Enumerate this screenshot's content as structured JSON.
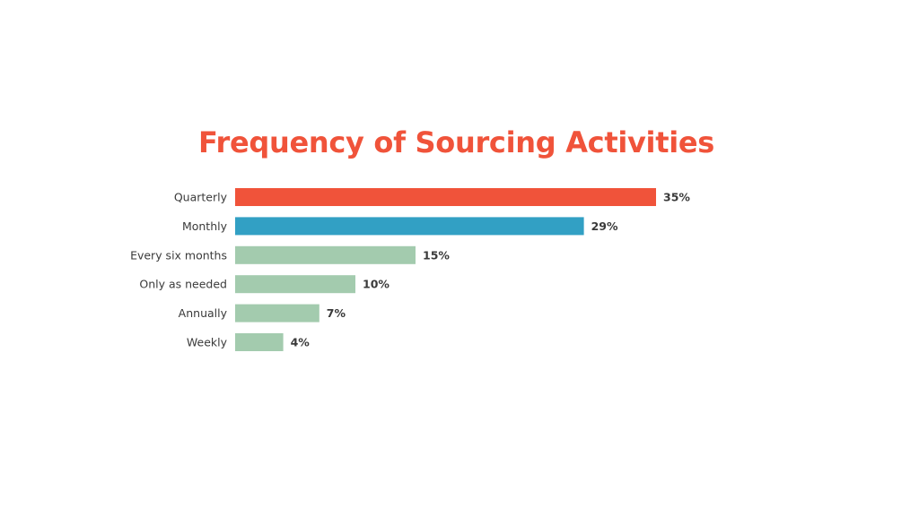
{
  "chart_data": {
    "type": "bar",
    "orientation": "horizontal",
    "title": "Frequency of Sourcing Activities",
    "categories": [
      "Quarterly",
      "Monthly",
      "Every six months",
      "Only as needed",
      "Annually",
      "Weekly"
    ],
    "values": [
      35,
      29,
      15,
      10,
      7,
      4
    ],
    "value_labels": [
      "35%",
      "29%",
      "15%",
      "10%",
      "7%",
      "4%"
    ],
    "unit": "%",
    "grid": false,
    "legend": "none",
    "colors": {
      "title": "#f0533a",
      "bars": [
        "#f0533a",
        "#32a0c4",
        "#a3cbae",
        "#a3cbae",
        "#a3cbae",
        "#a3cbae"
      ]
    }
  }
}
